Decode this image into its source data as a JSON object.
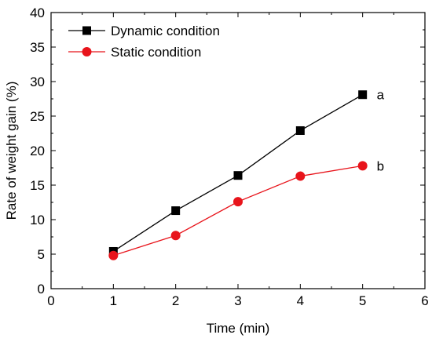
{
  "chart_data": {
    "type": "line",
    "title": "",
    "xlabel": "Time (min)",
    "ylabel": "Rate of weight gain (%)",
    "xlim": [
      0,
      6
    ],
    "ylim": [
      0,
      40
    ],
    "xticks": [
      0,
      1,
      2,
      3,
      4,
      5,
      6
    ],
    "yticks": [
      0,
      5,
      10,
      15,
      20,
      25,
      30,
      35,
      40
    ],
    "grid": false,
    "legend_position": "top-left",
    "series": [
      {
        "name": "Dynamic condition",
        "color": "#000000",
        "marker": "square",
        "x": [
          1,
          2,
          3,
          4,
          5
        ],
        "y": [
          5.4,
          11.3,
          16.4,
          22.9,
          28.1
        ]
      },
      {
        "name": "Static condition",
        "color": "#e8141b",
        "marker": "circle",
        "x": [
          1,
          2,
          3,
          4,
          5
        ],
        "y": [
          4.8,
          7.7,
          12.6,
          16.3,
          17.8
        ]
      }
    ],
    "annotations": [
      {
        "text": "a",
        "x": 5,
        "y": 28.1,
        "series": 0
      },
      {
        "text": "b",
        "x": 5,
        "y": 17.8,
        "series": 1
      }
    ]
  }
}
